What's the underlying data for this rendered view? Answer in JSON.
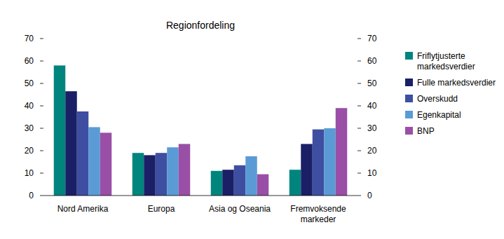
{
  "chart_data": {
    "type": "bar",
    "title": "Regionfordeling",
    "categories": [
      "Nord Amerika",
      "Europa",
      "Asia og Oseania",
      "Fremvoksende markeder"
    ],
    "series": [
      {
        "name": "Friflytjusterte markedsverdier",
        "color": "#00857e",
        "values": [
          58,
          19,
          11,
          11.5
        ]
      },
      {
        "name": "Fulle markedsverdier",
        "color": "#1b1f66",
        "values": [
          46.5,
          18,
          11.5,
          23
        ]
      },
      {
        "name": "Overskudd",
        "color": "#3e4fa1",
        "values": [
          37.5,
          19,
          13.5,
          29.5
        ]
      },
      {
        "name": "Egenkapital",
        "color": "#5a9bd6",
        "values": [
          30.5,
          21.5,
          17.5,
          30
        ]
      },
      {
        "name": "BNP",
        "color": "#9a4fa6",
        "values": [
          28,
          23,
          9.5,
          39
        ]
      }
    ],
    "ylim": [
      0,
      70
    ],
    "yticks": [
      0,
      10,
      20,
      30,
      40,
      50,
      60,
      70
    ],
    "y2lim": [
      0,
      70
    ],
    "y2ticks": [
      0,
      10,
      20,
      30,
      40,
      50,
      60,
      70
    ],
    "grid": false,
    "legend": "right"
  }
}
